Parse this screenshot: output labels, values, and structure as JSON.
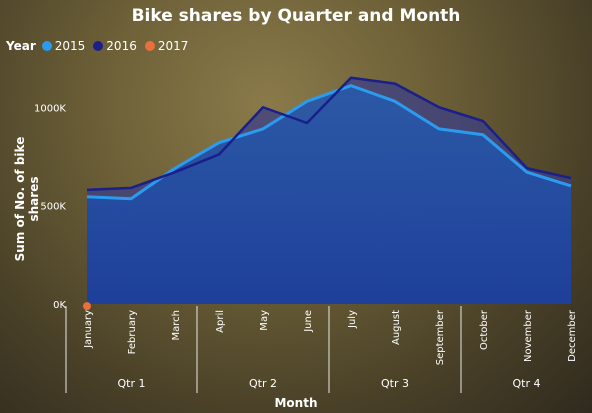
{
  "chart_data": {
    "type": "area",
    "title": "Bike shares by Quarter and Month",
    "xlabel": "Month",
    "ylabel": "Sum of No. of bike shares",
    "legend_title": "Year",
    "legend_position": "top-left",
    "categories": [
      "January",
      "February",
      "March",
      "April",
      "May",
      "June",
      "July",
      "August",
      "September",
      "October",
      "November",
      "December"
    ],
    "groups": [
      {
        "label": "Qtr 1",
        "months": 3
      },
      {
        "label": "Qtr 2",
        "months": 3
      },
      {
        "label": "Qtr 3",
        "months": 3
      },
      {
        "label": "Qtr 4",
        "months": 3
      }
    ],
    "y_ticks": [
      {
        "value": 0,
        "label": "0K"
      },
      {
        "value": 500000,
        "label": "500K"
      },
      {
        "value": 1000000,
        "label": "1000K"
      }
    ],
    "ylim": [
      0,
      1230000
    ],
    "grid": false,
    "series": [
      {
        "name": "2015",
        "color": "#2b9bf0",
        "values": [
          545000,
          535000,
          690000,
          820000,
          890000,
          1030000,
          1110000,
          1030000,
          890000,
          860000,
          670000,
          600000
        ]
      },
      {
        "name": "2016",
        "color": "#1a1f8a",
        "values": [
          580000,
          590000,
          670000,
          760000,
          1000000,
          920000,
          1150000,
          1120000,
          1000000,
          930000,
          690000,
          640000
        ]
      },
      {
        "name": "2017",
        "color": "#e8703a",
        "values": [
          40000,
          null,
          null,
          null,
          null,
          null,
          null,
          null,
          null,
          null,
          null,
          null
        ]
      }
    ]
  }
}
